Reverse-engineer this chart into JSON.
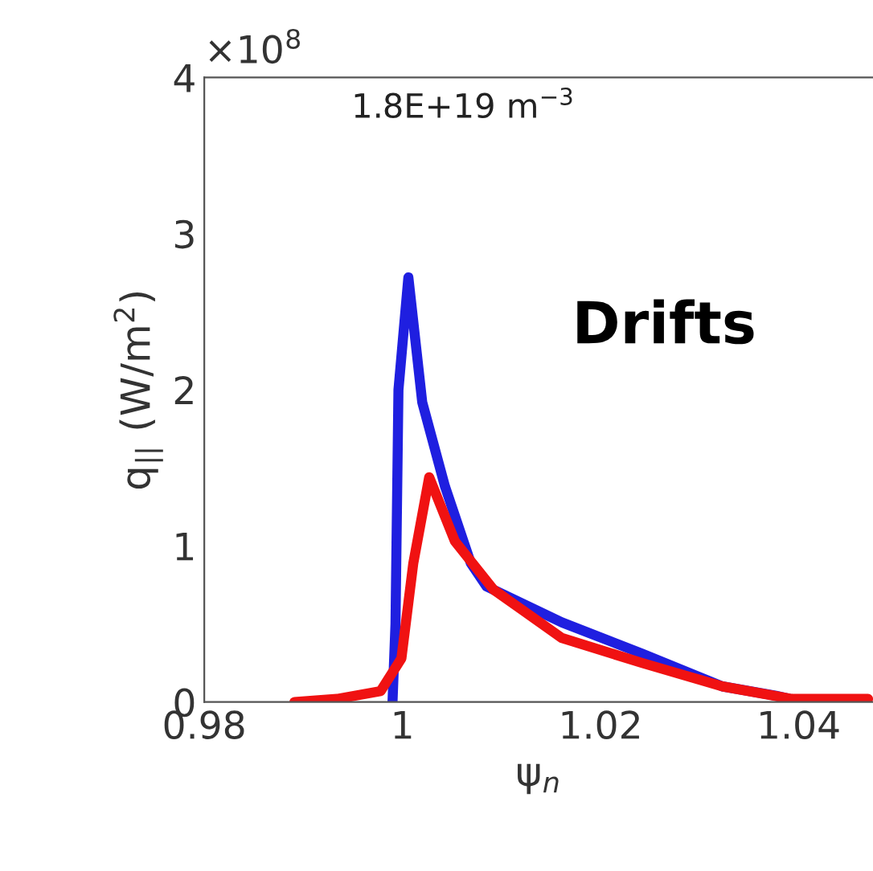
{
  "chart_data": {
    "type": "line",
    "xlabel": "ψ$_{n}$",
    "ylabel": "q$_{||}$ (W/m$^{2}$)",
    "annotations": [
      "×10$^{8}$",
      "1.8E+19 m$^{−3}$",
      "Drifts"
    ],
    "xlim": [
      0.98,
      1.0475
    ],
    "xticks": [
      0.98,
      1,
      1.02,
      1.04
    ],
    "ylim": [
      0,
      4
    ],
    "yticks": [
      0,
      1,
      2,
      3,
      4
    ],
    "grid": false,
    "legend": false,
    "line_style": "solid",
    "marker": "none",
    "series": [
      {
        "color": "#1f1fe0",
        "x": [
          0.999,
          0.9993,
          0.9996,
          1.0006,
          1.002,
          1.0043,
          1.0069,
          1.0085,
          1.0161,
          1.0242,
          1.0323,
          1.0377,
          1.0404
        ],
        "values": [
          0,
          0.5,
          2.0,
          2.72,
          1.92,
          1.38,
          0.89,
          0.74,
          0.51,
          0.31,
          0.1,
          0.04,
          0.0
        ]
      },
      {
        "color": "#f01212",
        "x": [
          0.9891,
          0.9934,
          0.9978,
          0.9999,
          1.0011,
          1.0027,
          1.0053,
          1.0092,
          1.0161,
          1.0242,
          1.0323,
          1.0393,
          1.047
        ],
        "values": [
          0,
          0.02,
          0.07,
          0.28,
          0.89,
          1.44,
          1.03,
          0.72,
          0.41,
          0.25,
          0.1,
          0.02,
          0.02
        ]
      }
    ]
  }
}
